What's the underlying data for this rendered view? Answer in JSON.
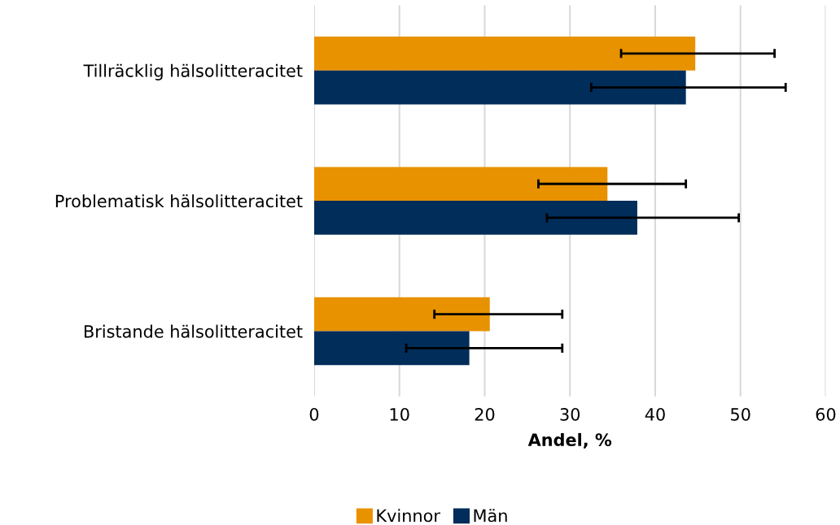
{
  "chart_data": {
    "type": "bar",
    "orientation": "horizontal",
    "xlabel": "Andel, %",
    "categories": [
      "Tillräcklig hälsolitteracitet",
      "Problematisk hälsolitteracitet",
      "Bristande hälsolitteracitet"
    ],
    "series": [
      {
        "name": "Kvinnor",
        "color": "#e89200",
        "values": [
          44.7,
          34.4,
          20.6
        ],
        "errors": [
          [
            36.0,
            54.0
          ],
          [
            26.3,
            43.6
          ],
          [
            14.1,
            29.1
          ]
        ]
      },
      {
        "name": "Män",
        "color": "#002d5a",
        "values": [
          43.6,
          37.9,
          18.2
        ],
        "errors": [
          [
            32.5,
            55.3
          ],
          [
            27.3,
            49.8
          ],
          [
            10.8,
            29.1
          ]
        ]
      }
    ],
    "xlim": [
      0,
      60
    ],
    "xticks": [
      0,
      10,
      20,
      30,
      40,
      50,
      60
    ],
    "grid": "x",
    "legend": "bottom"
  }
}
